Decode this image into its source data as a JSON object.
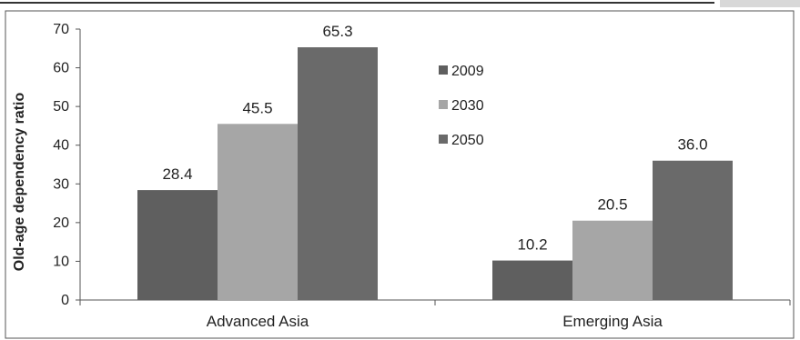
{
  "chart_data": {
    "type": "bar",
    "title": "",
    "xlabel": "",
    "ylabel": "Old-age dependency ratio",
    "ylim": [
      0,
      70
    ],
    "yticks": [
      0,
      10,
      20,
      30,
      40,
      50,
      60,
      70
    ],
    "categories": [
      "Advanced Asia",
      "Emerging Asia"
    ],
    "series": [
      {
        "name": "2009",
        "values": [
          28.4,
          10.2
        ],
        "labels": [
          "28.4",
          "10.2"
        ],
        "color": "#5f5f5f"
      },
      {
        "name": "2030",
        "values": [
          45.5,
          20.5
        ],
        "labels": [
          "45.5",
          "20.5"
        ],
        "color": "#a6a6a6"
      },
      {
        "name": "2050",
        "values": [
          65.3,
          36.0
        ],
        "labels": [
          "65.3",
          "36.0"
        ],
        "color": "#6a6a6a"
      }
    ],
    "legend_position": "right-of-first-group",
    "grid": false
  }
}
